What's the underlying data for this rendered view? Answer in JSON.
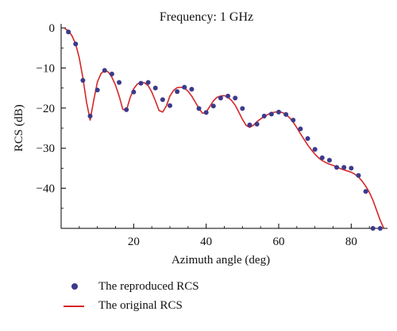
{
  "chart_data": {
    "type": "line",
    "title": "Frequency: 1 GHz",
    "xlabel": "Azimuth angle (deg)",
    "ylabel": "RCS (dB)",
    "xlim": [
      0,
      90
    ],
    "ylim": [
      -50,
      1
    ],
    "xticks": [
      20,
      40,
      60,
      80
    ],
    "yticks": [
      0,
      -10,
      -20,
      -30,
      -40
    ],
    "grid": false,
    "legend_position": "bottom-left",
    "series": [
      {
        "name": "The reproduced RCS",
        "kind": "scatter",
        "color": "#3b3a8c",
        "x": [
          2,
          4,
          6,
          8,
          10,
          12,
          14,
          16,
          18,
          20,
          22,
          24,
          26,
          28,
          30,
          32,
          34,
          36,
          38,
          40,
          42,
          44,
          46,
          48,
          50,
          52,
          54,
          56,
          58,
          60,
          62,
          64,
          66,
          68,
          70,
          72,
          74,
          76,
          78,
          80,
          82,
          84,
          86,
          88
        ],
        "y": [
          -1,
          -4,
          -13.1,
          -22,
          -15.5,
          -10.6,
          -11.5,
          -13.6,
          -20.4,
          -16,
          -13.8,
          -13.6,
          -15,
          -17.9,
          -19.4,
          -15.9,
          -14.8,
          -15.3,
          -20.1,
          -21.1,
          -19.5,
          -17.5,
          -17,
          -17.5,
          -20.1,
          -24.2,
          -24,
          -22,
          -21.5,
          -21,
          -21.6,
          -23,
          -25.2,
          -27.6,
          -30.3,
          -32.4,
          -33,
          -34.8,
          -34.8,
          -35,
          -36.8,
          -40.8,
          -50,
          -50
        ]
      },
      {
        "name": "The original RCS",
        "kind": "line",
        "color": "#d62728",
        "x": [
          1,
          2,
          3,
          4,
          5,
          6,
          7,
          8,
          9,
          10,
          11,
          12,
          13,
          14,
          15,
          16,
          17,
          18,
          19,
          20,
          21,
          22,
          23,
          24,
          25,
          26,
          27,
          28,
          29,
          30,
          31,
          32,
          33,
          34,
          35,
          36,
          37,
          38,
          39,
          40,
          41,
          42,
          43,
          44,
          45,
          46,
          47,
          48,
          49,
          50,
          51,
          52,
          53,
          54,
          55,
          56,
          57,
          58,
          59,
          60,
          61,
          62,
          63,
          64,
          65,
          66,
          67,
          68,
          69,
          70,
          71,
          72,
          73,
          74,
          75,
          76,
          77,
          78,
          79,
          80,
          81,
          82,
          83,
          84,
          85,
          86,
          87,
          88,
          89
        ],
        "y": [
          -0.2,
          -0.7,
          -2,
          -4,
          -7.5,
          -12.5,
          -18.5,
          -23,
          -18,
          -13.5,
          -11.4,
          -10.6,
          -11,
          -12.3,
          -14.3,
          -17,
          -20.3,
          -20.6,
          -17.5,
          -15.2,
          -14,
          -13.6,
          -13.7,
          -14.4,
          -16,
          -18.2,
          -20.6,
          -21,
          -19.5,
          -17,
          -15.6,
          -14.9,
          -14.8,
          -15,
          -15.8,
          -17,
          -18.5,
          -20.1,
          -21.3,
          -21,
          -19.6,
          -18.2,
          -17.3,
          -17,
          -16.9,
          -17.3,
          -18.1,
          -19.3,
          -21,
          -22.8,
          -24.3,
          -24.8,
          -24.3,
          -23.4,
          -22.7,
          -22.1,
          -21.6,
          -21.2,
          -21,
          -20.9,
          -21.1,
          -21.6,
          -22.4,
          -23.5,
          -24.9,
          -26.4,
          -27.8,
          -29.2,
          -30.4,
          -31.5,
          -32.4,
          -33.1,
          -33.6,
          -34,
          -34.3,
          -34.7,
          -35.1,
          -35.4,
          -35.7,
          -36,
          -36.5,
          -37.2,
          -38.2,
          -39.5,
          -41,
          -43,
          -45.5,
          -48,
          -50
        ]
      }
    ]
  }
}
